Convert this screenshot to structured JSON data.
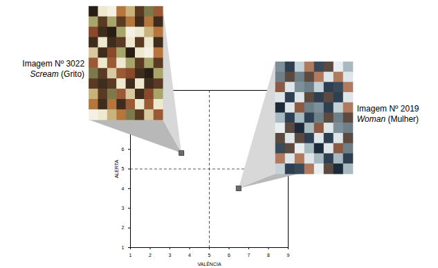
{
  "chart_data": {
    "type": "scatter",
    "x_label": "VALÊNCIA",
    "y_label": "ALERTA",
    "xlim": [
      1,
      9
    ],
    "ylim": [
      1,
      9
    ],
    "xticks": [
      1,
      2,
      3,
      4,
      5,
      6,
      7,
      8,
      9
    ],
    "yticks": [
      1,
      2,
      3,
      4,
      5,
      6
    ],
    "reference_x": 5,
    "reference_y": 5,
    "marker": "square",
    "color": "#6b6b6b",
    "points": [
      {
        "label": "Imagem Nº 3022",
        "name": "Scream",
        "translation": "(Grito)",
        "x": 3.6,
        "y": 5.8
      },
      {
        "label": "Imagem Nº 2019",
        "name": "Woman",
        "translation": "(Mulher)",
        "x": 6.5,
        "y": 4.0
      }
    ]
  }
}
